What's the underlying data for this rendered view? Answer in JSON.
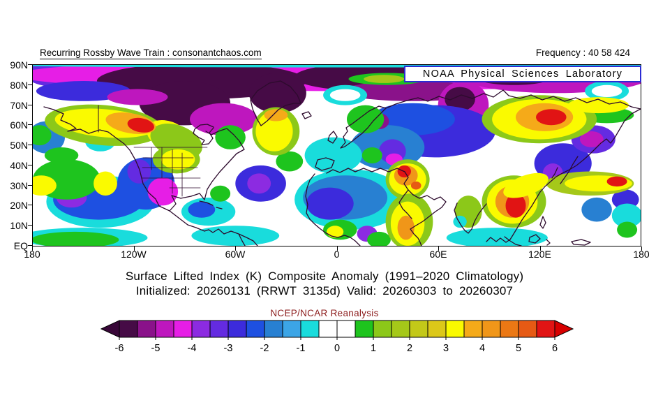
{
  "header": {
    "branding": "Recurring Rossby Wave Train : consonantchaos.com",
    "frequency": "Frequency : 40 58 424",
    "noaa_box": "NOAA Physical Sciences Laboratory"
  },
  "titles": {
    "line1": "Surface Lifted Index (K) Composite Anomaly (1991–2020 Climatology)",
    "line2": "Initialized: 20260131 (RRWT 3135d) Valid: 20260303 to 20260307",
    "colorbar_source": "NCEP/NCAR Reanalysis"
  },
  "axes": {
    "lat_ticks": [
      "90N",
      "80N",
      "70N",
      "60N",
      "50N",
      "40N",
      "30N",
      "20N",
      "10N",
      "EQ"
    ],
    "lon_ticks": [
      "180",
      "120W",
      "60W",
      "0",
      "60E",
      "120E",
      "180"
    ]
  },
  "colors": {
    "noaa_box_border": "#2B2BD4",
    "source_label": "#8B1A1A",
    "coastline": "#2D0B2D",
    "axis": "#000000"
  },
  "chart_data": {
    "type": "heatmap",
    "subtype": "filled-contour world map, northern hemisphere (EQ to 90N)",
    "variable": "Surface Lifted Index (K) Composite Anomaly",
    "climatology": "1991-2020",
    "initialized": "20260131",
    "rrwt": "3135d",
    "valid_from": "20260303",
    "valid_to": "20260307",
    "frequency": "40 58 424",
    "source": "NCEP/NCAR Reanalysis",
    "lon_range": [
      -180,
      180
    ],
    "lat_range": [
      0,
      90
    ],
    "colorbar": {
      "tick_values": [
        -6,
        -5,
        -4,
        -3,
        -2,
        -1,
        0,
        1,
        2,
        3,
        4,
        5,
        6
      ],
      "cell_edges_start": -6,
      "cell_step": 0.5,
      "cell_colors": [
        "#460B46",
        "#8A128A",
        "#BE17BE",
        "#E61EE6",
        "#8C2BE1",
        "#642BE1",
        "#3C2BDC",
        "#1E50E1",
        "#2880D2",
        "#3CA5E6",
        "#19DCDC",
        "#FFFFFF",
        "#FFFFFF",
        "#1EC41E",
        "#8CC819",
        "#A5C819",
        "#C3C819",
        "#DCC819",
        "#FAFA00",
        "#F5AA19",
        "#F09619",
        "#EB7814",
        "#E65A14",
        "#E11414"
      ],
      "left_arrow_color": "#380738",
      "right_arrow_color": "#D70000"
    },
    "feature_format": [
      "lon_center_deg",
      "lat_center_deg",
      "rx_deg",
      "ry_deg",
      "anomaly_value",
      "rotation_deg"
    ],
    "features": [
      [
        -165,
        86,
        20,
        7,
        -3.2,
        0
      ],
      [
        0,
        85,
        190,
        8,
        -4.3,
        0
      ],
      [
        130,
        84,
        55,
        8,
        -4.7,
        0
      ],
      [
        -80,
        82,
        62,
        9,
        -5.7,
        0
      ],
      [
        20,
        84,
        45,
        7,
        -5.7,
        0
      ],
      [
        105,
        85,
        25,
        5,
        -5.7,
        0
      ],
      [
        0,
        89.7,
        190,
        0.9,
        -0.9,
        0
      ],
      [
        45,
        77,
        42,
        5,
        -5.2,
        0
      ],
      [
        -150,
        77,
        28,
        5,
        -2.7,
        0
      ],
      [
        -35,
        76,
        17,
        10,
        -5.7,
        0
      ],
      [
        -90,
        71,
        27,
        11,
        -5.7,
        0
      ],
      [
        -67,
        63,
        20,
        8,
        -4.6,
        0
      ],
      [
        -118,
        74,
        18,
        4,
        -4.6,
        0
      ],
      [
        75,
        70,
        15,
        12,
        -4.6,
        0
      ],
      [
        73,
        73,
        9,
        6,
        -5.7,
        0
      ],
      [
        58,
        57,
        36,
        13,
        -2.7,
        0
      ],
      [
        45,
        63,
        25,
        8,
        -2.2,
        0
      ],
      [
        30,
        49,
        22,
        11,
        -1.7,
        0
      ],
      [
        33,
        47,
        8,
        6,
        -3.2,
        0
      ],
      [
        25,
        62,
        6,
        4,
        -5.3,
        0
      ],
      [
        34,
        43,
        5,
        3,
        -4.4,
        0
      ],
      [
        -2,
        45,
        17,
        9,
        -0.7,
        0
      ],
      [
        8,
        23,
        33,
        15,
        -0.7,
        0
      ],
      [
        5,
        24,
        25,
        11,
        -1.7,
        0
      ],
      [
        -4,
        21,
        14,
        8,
        -2.7,
        0
      ],
      [
        18,
        6,
        6,
        4,
        -3.7,
        0
      ],
      [
        -140,
        22,
        32,
        13,
        -0.7,
        0
      ],
      [
        -141,
        23,
        27,
        10,
        -2.2,
        0
      ],
      [
        -157,
        24,
        9,
        5,
        -3.7,
        0
      ],
      [
        -113,
        31,
        17,
        13,
        -2.2,
        0
      ],
      [
        -103,
        27,
        9,
        7,
        -4.3,
        0
      ],
      [
        -117,
        37,
        7,
        6,
        -3.3,
        0
      ],
      [
        -45,
        31,
        15,
        9,
        -2.7,
        0
      ],
      [
        -46,
        31,
        7,
        5,
        -3.7,
        0
      ],
      [
        -76,
        17,
        16,
        7,
        -0.7,
        0
      ],
      [
        -80,
        18,
        8,
        4,
        -2.2,
        0
      ],
      [
        134,
        41,
        17,
        10,
        -2.7,
        0
      ],
      [
        128,
        36,
        6,
        5,
        -3.8,
        0
      ],
      [
        152,
        53,
        13,
        7,
        -3.3,
        0
      ],
      [
        151,
        53,
        7,
        4,
        -4.7,
        0
      ],
      [
        154,
        18,
        9,
        6,
        -1.8,
        0
      ],
      [
        171,
        23,
        8,
        5,
        -2.8,
        0
      ],
      [
        -172,
        54,
        11,
        8,
        -1.7,
        0
      ],
      [
        -140,
        52,
        9,
        5,
        -0.7,
        0
      ],
      [
        172,
        15,
        9,
        6,
        -0.7,
        0
      ],
      [
        -150,
        4,
        38,
        5,
        -0.7,
        0
      ],
      [
        -60,
        5,
        26,
        5,
        -0.7,
        0
      ],
      [
        95,
        4,
        30,
        5,
        -0.7,
        0
      ],
      [
        5,
        75,
        13,
        5,
        -0.7,
        0
      ],
      [
        5,
        75,
        9,
        3,
        0.2,
        0
      ],
      [
        160,
        77,
        13,
        5,
        -0.7,
        0
      ],
      [
        160,
        77,
        9,
        3,
        0.2,
        0
      ],
      [
        17,
        63,
        11,
        7,
        0.7,
        0
      ],
      [
        30,
        83,
        23,
        3,
        0.7,
        0
      ],
      [
        28,
        83,
        12,
        2,
        1.7,
        0
      ],
      [
        -63,
        54,
        9,
        6,
        0.7,
        0
      ],
      [
        -28,
        42,
        8,
        5,
        0.7,
        0
      ],
      [
        -69,
        26,
        6,
        4,
        0.7,
        0
      ],
      [
        21,
        45,
        6,
        4,
        0.7,
        0
      ],
      [
        2,
        8,
        10,
        5,
        0.7,
        0
      ],
      [
        -1,
        7,
        5,
        3,
        3.2,
        0
      ],
      [
        -155,
        3,
        26,
        4,
        0.7,
        0
      ],
      [
        -160,
        33,
        20,
        10,
        0.7,
        0
      ],
      [
        -163,
        45,
        10,
        4,
        0.7,
        0
      ],
      [
        -176,
        55,
        7,
        5,
        0.7,
        0
      ],
      [
        160,
        65,
        16,
        4,
        0.7,
        0
      ],
      [
        172,
        8,
        6,
        4,
        0.7,
        0
      ],
      [
        25,
        3,
        7,
        4,
        0.7,
        0
      ],
      [
        78,
        17,
        8,
        8,
        1.2,
        0
      ],
      [
        73,
        12,
        4,
        3,
        -0.7,
        0
      ],
      [
        -138,
        60,
        35,
        10,
        1.2,
        5
      ],
      [
        -137,
        61,
        30,
        7,
        3.2,
        5
      ],
      [
        -100,
        55,
        13,
        7,
        3.2,
        20
      ],
      [
        -95,
        52,
        16,
        8,
        1.2,
        20
      ],
      [
        -122,
        61,
        15,
        5,
        3.8,
        10
      ],
      [
        -116,
        60,
        8,
        3.5,
        5.7,
        10
      ],
      [
        -95,
        43,
        14,
        7,
        1.2,
        0
      ],
      [
        -94,
        43,
        10,
        5,
        3.2,
        0
      ],
      [
        -36,
        57,
        14,
        12,
        1.2,
        0
      ],
      [
        -37,
        57,
        11,
        10,
        3.2,
        0
      ],
      [
        -36,
        65,
        7,
        3,
        3.8,
        0
      ],
      [
        -137,
        31,
        7,
        6,
        3.2,
        0
      ],
      [
        -175,
        30,
        9,
        5,
        3.2,
        0
      ],
      [
        150,
        31,
        26,
        6,
        1.7,
        0
      ],
      [
        155,
        31,
        20,
        4,
        3.2,
        0
      ],
      [
        166,
        32,
        6,
        2.5,
        5.7,
        0
      ],
      [
        120,
        63,
        34,
        12,
        1.2,
        0
      ],
      [
        120,
        63,
        28,
        10,
        3.2,
        0
      ],
      [
        123,
        64,
        17,
        7,
        3.8,
        0
      ],
      [
        127,
        64,
        9,
        4,
        5.7,
        0
      ],
      [
        155,
        70,
        18,
        4,
        3.2,
        0
      ],
      [
        105,
        22,
        19,
        13,
        1.2,
        0
      ],
      [
        104,
        22,
        15,
        11,
        3.2,
        0
      ],
      [
        104,
        22,
        10,
        8,
        4.3,
        0
      ],
      [
        106,
        20,
        6,
        6,
        5.7,
        0
      ],
      [
        112,
        30,
        14,
        5,
        3.2,
        -20
      ],
      [
        42,
        33,
        13,
        10,
        1.2,
        0
      ],
      [
        42,
        33,
        11,
        8,
        3.2,
        0
      ],
      [
        41,
        35,
        7,
        5,
        4.3,
        0
      ],
      [
        40,
        37,
        4,
        3,
        5.7,
        0
      ],
      [
        47,
        30,
        3,
        2,
        5.2,
        0
      ],
      [
        43,
        12,
        14,
        14,
        1.2,
        0
      ],
      [
        42,
        11,
        10,
        11,
        3.2,
        0
      ],
      [
        41,
        9,
        5,
        6,
        4.3,
        0
      ]
    ]
  }
}
